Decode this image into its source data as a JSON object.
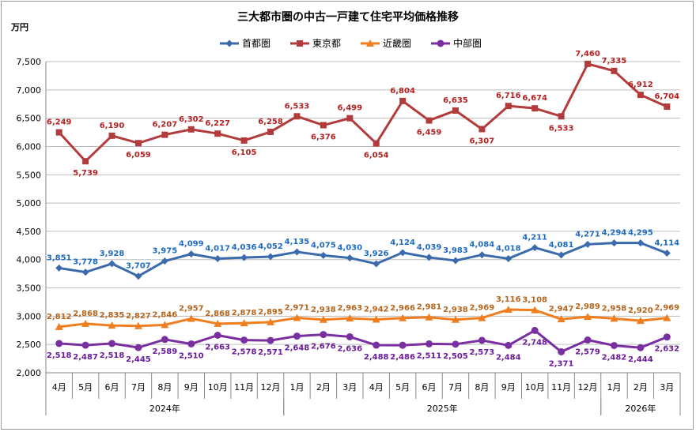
{
  "chart_data": {
    "type": "line",
    "title": "三大都市圏の中古一戸建て住宅平均価格推移",
    "unit_label": "万円",
    "ylim": [
      2000,
      7500
    ],
    "yticks": [
      2000,
      2500,
      3000,
      3500,
      4000,
      4500,
      5000,
      5500,
      6000,
      6500,
      7000,
      7500
    ],
    "ytick_labels": [
      "2,000",
      "2,500",
      "3,000",
      "3,500",
      "4,000",
      "4,500",
      "5,000",
      "5,500",
      "6,000",
      "6,500",
      "7,000",
      "7,500"
    ],
    "categories": [
      "4月",
      "5月",
      "6月",
      "7月",
      "8月",
      "9月",
      "10月",
      "11月",
      "12月",
      "1月",
      "2月",
      "3月",
      "4月",
      "5月",
      "6月",
      "7月",
      "8月",
      "9月",
      "10月",
      "11月",
      "12月",
      "1月",
      "2月",
      "3月"
    ],
    "year_groups": [
      {
        "label": "2024年",
        "start": 0,
        "end": 8
      },
      {
        "label": "2025年",
        "start": 9,
        "end": 20
      },
      {
        "label": "2026年",
        "start": 21,
        "end": 23
      }
    ],
    "grid": true,
    "legend_position": "top-center",
    "series": [
      {
        "name": "首都圏",
        "color": "#3B6BAD",
        "label_color": "#1F6BBF",
        "marker": "diamond",
        "label_pos": "above",
        "values": [
          3851,
          3778,
          3928,
          3707,
          3975,
          4099,
          4017,
          4036,
          4052,
          4135,
          4075,
          4030,
          3926,
          4124,
          4039,
          3983,
          4084,
          4018,
          4211,
          4081,
          4271,
          4294,
          4295,
          4114
        ],
        "labels": [
          "3,851",
          "3,778",
          "3,928",
          "3,707",
          "3,975",
          "4,099",
          "4,017",
          "4,036",
          "4,052",
          "4,135",
          "4,075",
          "4,030",
          "3,926",
          "4,124",
          "4,039",
          "3,983",
          "4,084",
          "4,018",
          "4,211",
          "4,081",
          "4,271",
          "4,294",
          "4,295",
          "4,114"
        ]
      },
      {
        "name": "東京都",
        "color": "#B23B3B",
        "label_color": "#B22222",
        "marker": "square",
        "label_pos": "mixed",
        "values": [
          6249,
          5739,
          6190,
          6059,
          6207,
          6302,
          6227,
          6105,
          6258,
          6533,
          6376,
          6499,
          6054,
          6804,
          6459,
          6635,
          6307,
          6716,
          6674,
          6533,
          7460,
          7335,
          6912,
          6704
        ],
        "labels": [
          "6,249",
          "5,739",
          "6,190",
          "6,059",
          "6,207",
          "6,302",
          "6,227",
          "6,105",
          "6,258",
          "6,533",
          "6,376",
          "6,499",
          "6,054",
          "6,804",
          "6,459",
          "6,635",
          "6,307",
          "6,716",
          "6,674",
          "6,533",
          "7,460",
          "7,335",
          "6,912",
          "6,704"
        ]
      },
      {
        "name": "近畿圏",
        "color": "#F07D1E",
        "label_color": "#B5651D",
        "marker": "triangle",
        "label_pos": "above",
        "values": [
          2812,
          2868,
          2835,
          2827,
          2846,
          2957,
          2868,
          2878,
          2895,
          2971,
          2938,
          2963,
          2942,
          2966,
          2981,
          2938,
          2969,
          3116,
          3108,
          2947,
          2989,
          2958,
          2920,
          2969
        ],
        "labels": [
          "2,812",
          "2,868",
          "2,835",
          "2,827",
          "2,846",
          "2,957",
          "2,868",
          "2,878",
          "2,895",
          "2,971",
          "2,938",
          "2,963",
          "2,942",
          "2,966",
          "2,981",
          "2,938",
          "2,969",
          "3,116",
          "3,108",
          "2,947",
          "2,989",
          "2,958",
          "2,920",
          "2,969"
        ]
      },
      {
        "name": "中部圏",
        "color": "#7A2FA0",
        "label_color": "#6A1B9A",
        "marker": "circle",
        "label_pos": "below",
        "values": [
          2518,
          2487,
          2518,
          2445,
          2589,
          2510,
          2663,
          2578,
          2571,
          2648,
          2676,
          2636,
          2488,
          2486,
          2511,
          2505,
          2573,
          2484,
          2748,
          2371,
          2579,
          2482,
          2444,
          2632
        ],
        "labels": [
          "2,518",
          "2,487",
          "2,518",
          "2,445",
          "2,589",
          "2,510",
          "2,663",
          "2,578",
          "2,571",
          "2,648",
          "2,676",
          "2,636",
          "2,488",
          "2,486",
          "2,511",
          "2,505",
          "2,573",
          "2,484",
          "2,748",
          "2,371",
          "2,579",
          "2,482",
          "2,444",
          "2,632"
        ]
      }
    ]
  }
}
